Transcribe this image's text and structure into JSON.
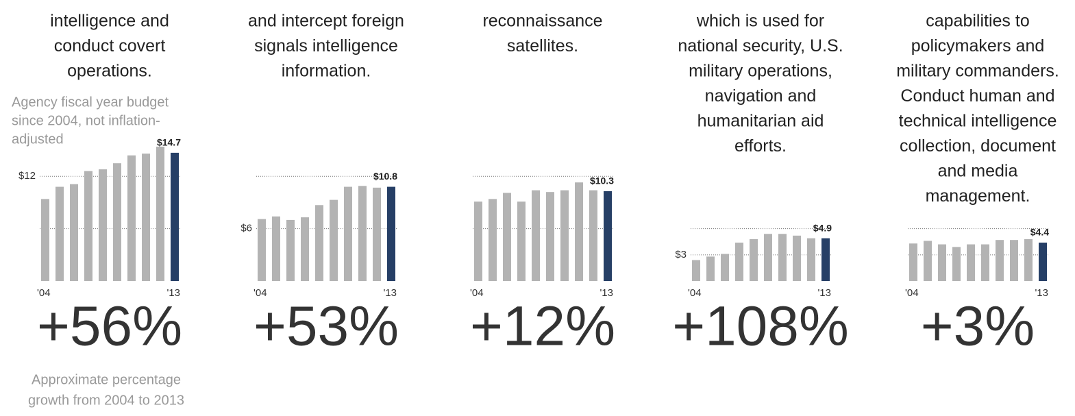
{
  "chart_data": [
    {
      "type": "bar",
      "description": [
        "intelligence and",
        "conduct covert",
        "operations."
      ],
      "note": [
        "Agency fiscal year budget",
        "since 2004, not inflation-",
        "adjusted"
      ],
      "categories": [
        "'04",
        null,
        null,
        null,
        null,
        null,
        null,
        null,
        null,
        "'13"
      ],
      "values": [
        9.4,
        10.8,
        11.1,
        12.6,
        12.8,
        13.5,
        14.4,
        14.6,
        15.4,
        14.7
      ],
      "value_labels": [
        null,
        null,
        null,
        null,
        null,
        null,
        null,
        null,
        null,
        "$14.7"
      ],
      "color": "#b3b3b3",
      "highlight_color": "#263f66",
      "ylim": [
        0,
        16.5
      ],
      "yticks": [
        {
          "value": 12,
          "label": "$12"
        }
      ],
      "gridlines": [
        6
      ],
      "growth": "+56%",
      "footnote": [
        "Approximate percentage",
        "growth from 2004 to 2013"
      ]
    },
    {
      "type": "bar",
      "description": [
        "and intercept foreign",
        "signals intelligence",
        "information."
      ],
      "categories": [
        "'04",
        null,
        null,
        null,
        null,
        null,
        null,
        null,
        null,
        "'13"
      ],
      "values": [
        7.1,
        7.4,
        7.0,
        7.3,
        8.7,
        9.3,
        10.8,
        10.9,
        10.7,
        10.8
      ],
      "value_labels": [
        null,
        null,
        null,
        null,
        null,
        null,
        null,
        null,
        null,
        "$10.8"
      ],
      "color": "#b3b3b3",
      "highlight_color": "#263f66",
      "ylim": [
        0,
        16.5
      ],
      "yticks": [
        {
          "value": 6,
          "label": "$6"
        }
      ],
      "gridlines": [
        12
      ],
      "growth": "+53%"
    },
    {
      "type": "bar",
      "description": [
        "reconnaissance",
        "satellites."
      ],
      "categories": [
        "'04",
        null,
        null,
        null,
        null,
        null,
        null,
        null,
        null,
        "'13"
      ],
      "values": [
        9.1,
        9.4,
        10.1,
        9.1,
        10.4,
        10.2,
        10.4,
        11.3,
        10.4,
        10.3
      ],
      "value_labels": [
        null,
        null,
        null,
        null,
        null,
        null,
        null,
        null,
        null,
        "$10.3"
      ],
      "color": "#b3b3b3",
      "highlight_color": "#263f66",
      "ylim": [
        0,
        16.5
      ],
      "yticks": [],
      "gridlines": [
        6,
        12
      ],
      "growth": "+12%"
    },
    {
      "type": "bar",
      "description": [
        "which is used for",
        "national security, U.S.",
        "military operations,",
        "navigation and",
        "humanitarian aid",
        "efforts."
      ],
      "categories": [
        "'04",
        null,
        null,
        null,
        null,
        null,
        null,
        null,
        null,
        "'13"
      ],
      "values": [
        2.4,
        2.8,
        3.1,
        4.4,
        4.8,
        5.4,
        5.4,
        5.2,
        4.9,
        4.9
      ],
      "value_labels": [
        null,
        null,
        null,
        null,
        null,
        null,
        null,
        null,
        null,
        "$4.9"
      ],
      "color": "#b3b3b3",
      "highlight_color": "#263f66",
      "ylim": [
        0,
        16.5
      ],
      "yticks": [
        {
          "value": 3,
          "label": "$3"
        }
      ],
      "gridlines": [
        6
      ],
      "growth": "+108%"
    },
    {
      "type": "bar",
      "description": [
        "capabilities to",
        "policymakers and",
        "military commanders.",
        "Conduct human and",
        "technical intelligence",
        "collection, document",
        "and media",
        "management."
      ],
      "categories": [
        "'04",
        null,
        null,
        null,
        null,
        null,
        null,
        null,
        null,
        "'13"
      ],
      "values": [
        4.3,
        4.6,
        4.2,
        3.9,
        4.2,
        4.2,
        4.7,
        4.7,
        4.8,
        4.4
      ],
      "value_labels": [
        null,
        null,
        null,
        null,
        null,
        null,
        null,
        null,
        null,
        "$4.4"
      ],
      "color": "#b3b3b3",
      "highlight_color": "#263f66",
      "ylim": [
        0,
        16.5
      ],
      "yticks": [],
      "gridlines": [
        3,
        6
      ],
      "growth": "+3%"
    }
  ]
}
